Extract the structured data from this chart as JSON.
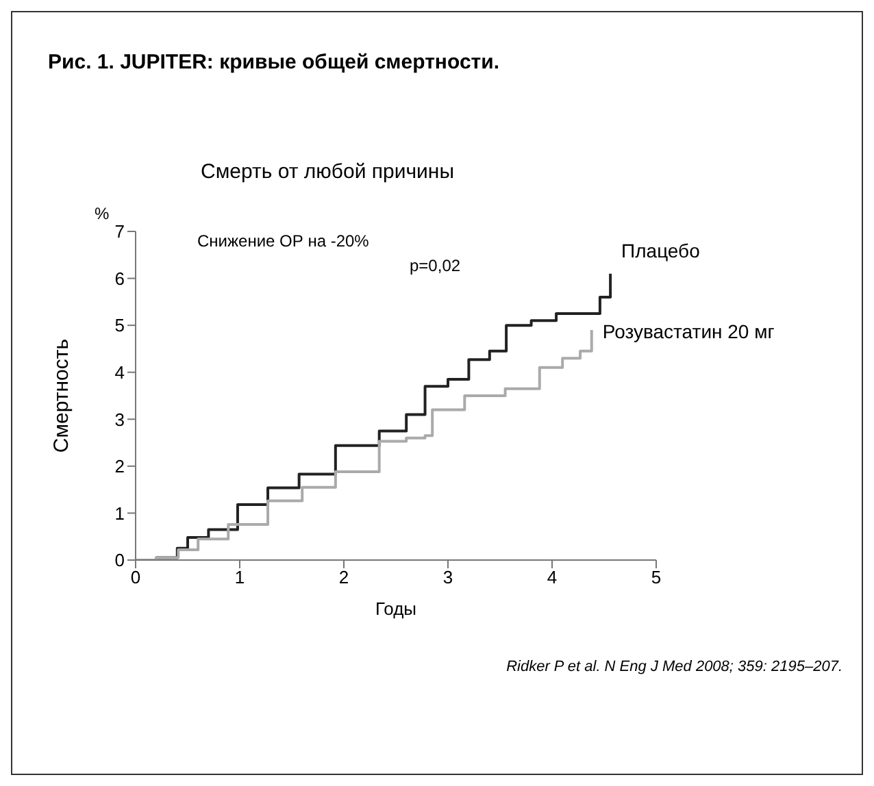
{
  "chart_data": {
    "type": "step",
    "title": "Рис. 1. JUPITER: кривые общей смертности.",
    "subtitle": "Смерть от любой причины",
    "xlabel": "Годы",
    "ylabel": "Смертность",
    "annotations": [
      "%",
      "Снижение ОР на -20%",
      "p=0,02",
      "Ridker P et al. N Eng J Med 2008; 359: 2195–207."
    ],
    "series": [
      {
        "name": "Плацебо",
        "color": "#222222",
        "x": [
          0,
          0.2,
          0.4,
          0.5,
          0.7,
          0.98,
          1.27,
          1.57,
          1.92,
          2.34,
          2.6,
          2.78,
          3.0,
          3.2,
          3.4,
          3.56,
          3.8,
          4.04,
          4.46,
          4.56
        ],
        "values": [
          0,
          0.05,
          0.25,
          0.48,
          0.65,
          1.18,
          1.54,
          1.83,
          2.44,
          2.75,
          3.1,
          3.7,
          3.85,
          4.27,
          4.45,
          5.0,
          5.1,
          5.25,
          5.6,
          6.1
        ]
      },
      {
        "name": "Розувастатин 20 мг",
        "color": "#aaaaaa",
        "x": [
          0,
          0.2,
          0.41,
          0.6,
          0.89,
          1.27,
          1.6,
          1.92,
          2.34,
          2.6,
          2.78,
          2.85,
          3.16,
          3.55,
          3.88,
          4.1,
          4.27,
          4.38
        ],
        "values": [
          0,
          0.05,
          0.22,
          0.45,
          0.76,
          1.26,
          1.55,
          1.88,
          2.53,
          2.6,
          2.65,
          3.2,
          3.5,
          3.65,
          4.1,
          4.3,
          4.45,
          4.9
        ]
      }
    ],
    "xlim": [
      0,
      5
    ],
    "xticks": [
      0,
      1,
      2,
      3,
      4,
      5
    ],
    "ylim": [
      0,
      7
    ],
    "yticks": [
      0,
      1,
      2,
      3,
      4,
      5,
      6,
      7
    ],
    "grid": false,
    "marker": "none",
    "line_style": "solid"
  }
}
